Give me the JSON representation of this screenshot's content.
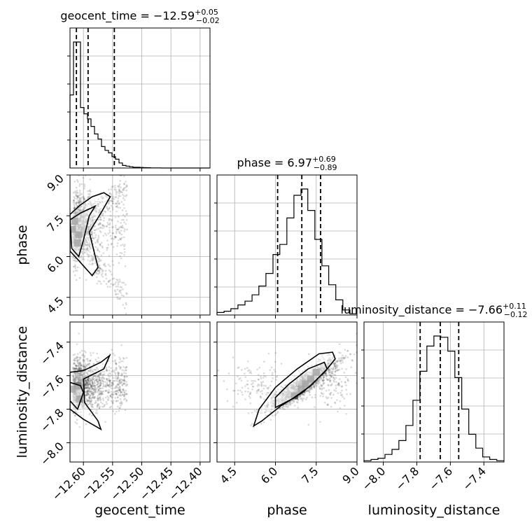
{
  "chart_data": {
    "type": "corner",
    "parameters": [
      "geocent_time",
      "phase",
      "luminosity_distance"
    ],
    "axis_labels": {
      "geocent_time": "geocent_time",
      "phase": "phase",
      "luminosity_distance": "luminosity_distance"
    },
    "ranges": {
      "geocent_time": [
        -12.623,
        -12.383
      ],
      "phase": [
        3.85,
        9.0
      ],
      "luminosity_distance": [
        -8.115,
        -7.28
      ]
    },
    "ticks": {
      "geocent_time": {
        "values": [
          -12.6,
          -12.55,
          -12.5,
          -12.45,
          -12.4
        ],
        "labels": [
          "−12.60",
          "−12.55",
          "−12.50",
          "−12.45",
          "−12.40"
        ]
      },
      "phase": {
        "values": [
          4.5,
          6.0,
          7.5,
          9.0
        ],
        "labels": [
          "4.5",
          "6.0",
          "7.5",
          "9.0"
        ]
      },
      "luminosity_distance": {
        "values": [
          -8.0,
          -7.8,
          -7.6,
          -7.4
        ],
        "labels": [
          "−8.0",
          "−7.8",
          "−7.6",
          "−7.4"
        ]
      }
    },
    "titles": [
      {
        "param": "geocent_time",
        "text": "geocent_time = −12.59",
        "sup": "+0.05",
        "sub": "−0.02"
      },
      {
        "param": "phase",
        "text": "phase = 6.97",
        "sup": "+0.69",
        "sub": "−0.89"
      },
      {
        "param": "luminosity_distance",
        "text": "luminosity_distance = −7.66",
        "sup": "+0.11",
        "sub": "−0.12"
      }
    ],
    "quantiles": {
      "geocent_time": [
        -12.612,
        -12.592,
        -12.547
      ],
      "phase": [
        6.08,
        6.97,
        7.66
      ],
      "luminosity_distance": [
        -7.78,
        -7.66,
        -7.55
      ]
    },
    "histograms": {
      "geocent_time": {
        "edges": [
          -12.623,
          -12.617,
          -12.611,
          -12.605,
          -12.599,
          -12.593,
          -12.587,
          -12.581,
          -12.575,
          -12.569,
          -12.563,
          -12.557,
          -12.551,
          -12.545,
          -12.539,
          -12.533,
          -12.527,
          -12.521,
          -12.515,
          -12.509,
          -12.503,
          -12.497,
          -12.491,
          -12.485,
          -12.479,
          -12.473,
          -12.467,
          -12.461,
          -12.455,
          -12.449,
          -12.443,
          -12.437,
          -12.431,
          -12.425,
          -12.419,
          -12.413,
          -12.407,
          -12.401,
          -12.395,
          -12.389,
          -12.383
        ],
        "counts": [
          0.58,
          1.0,
          1.0,
          0.48,
          0.43,
          0.39,
          0.33,
          0.27,
          0.23,
          0.17,
          0.14,
          0.12,
          0.09,
          0.07,
          0.04,
          0.02,
          0.015,
          0.01,
          0.006,
          0.006,
          0.004,
          0.003,
          0.002,
          0.001,
          0.001,
          0.001,
          0.0,
          0.0,
          0.0,
          0.0,
          0.0,
          0.0,
          0.0,
          0.0,
          0.0,
          0.0,
          0.0,
          0.0,
          0.0,
          0.0
        ]
      },
      "phase": {
        "edges": [
          3.85,
          4.11,
          4.36,
          4.62,
          4.88,
          5.14,
          5.39,
          5.65,
          5.91,
          6.16,
          6.42,
          6.68,
          6.94,
          7.19,
          7.45,
          7.71,
          7.96,
          8.22,
          8.48,
          8.74,
          9.0
        ],
        "counts": [
          0.02,
          0.03,
          0.05,
          0.08,
          0.11,
          0.16,
          0.23,
          0.33,
          0.48,
          0.56,
          0.77,
          0.95,
          1.0,
          0.83,
          0.6,
          0.39,
          0.24,
          0.12,
          0.04,
          0.01
        ]
      },
      "luminosity_distance": {
        "edges": [
          -8.115,
          -8.073,
          -8.032,
          -7.99,
          -7.948,
          -7.907,
          -7.865,
          -7.823,
          -7.782,
          -7.74,
          -7.698,
          -7.657,
          -7.615,
          -7.573,
          -7.532,
          -7.49,
          -7.448,
          -7.407,
          -7.365,
          -7.323,
          -7.28
        ],
        "counts": [
          0.01,
          0.02,
          0.03,
          0.06,
          0.1,
          0.17,
          0.29,
          0.49,
          0.72,
          0.92,
          1.0,
          0.99,
          0.88,
          0.67,
          0.42,
          0.22,
          0.11,
          0.04,
          0.02,
          0.01
        ]
      }
    },
    "grid": true,
    "style": {
      "line_color": "#000000",
      "scatter_color": "#555555",
      "grid_color": "#b0b0b0"
    }
  }
}
